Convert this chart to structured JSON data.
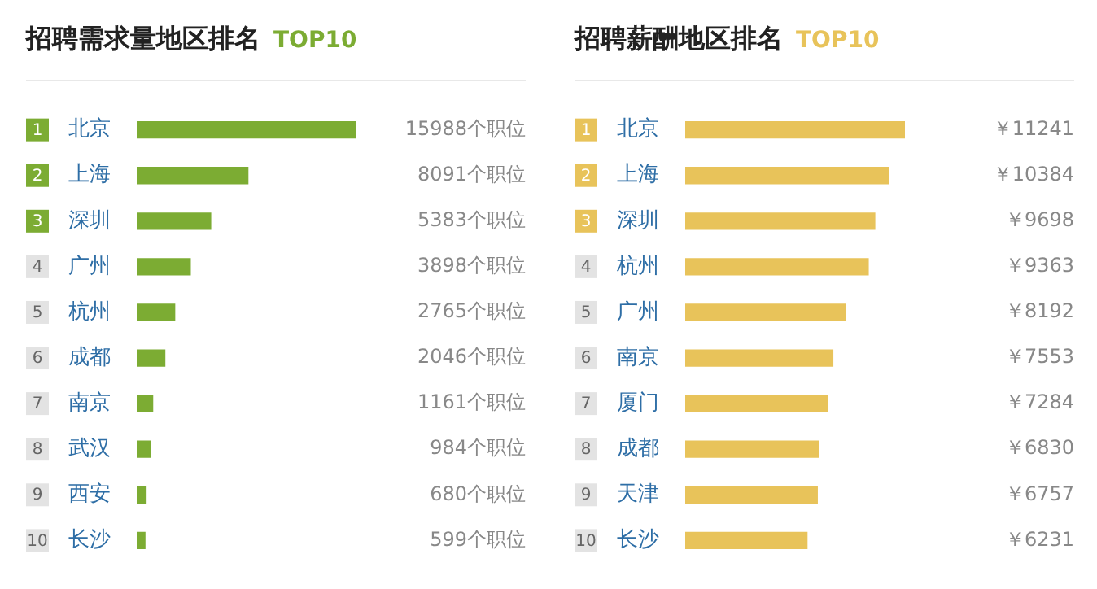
{
  "chart_data": [
    {
      "type": "bar",
      "orientation": "horizontal",
      "title": "招聘需求量地区排名",
      "subtitle": "TOP10",
      "categories": [
        "北京",
        "上海",
        "深圳",
        "广州",
        "杭州",
        "成都",
        "南京",
        "武汉",
        "西安",
        "长沙"
      ],
      "values": [
        15988,
        8091,
        5383,
        3898,
        2765,
        2046,
        1161,
        984,
        680,
        599
      ],
      "color": "#7cac33",
      "value_labels": [
        "15988个职位",
        "8091个职位",
        "5383个职位",
        "3898个职位",
        "2765个职位",
        "2046个职位",
        "1161个职位",
        "984个职位",
        "680个职位",
        "599个职位"
      ],
      "annotations": [
        "1",
        "2",
        "3",
        "4",
        "5",
        "6",
        "7",
        "8",
        "9",
        "10"
      ],
      "legend": false,
      "tick_labels": "y"
    },
    {
      "type": "bar",
      "orientation": "horizontal",
      "title": "招聘薪酬地区排名",
      "subtitle": "TOP10",
      "categories": [
        "北京",
        "上海",
        "深圳",
        "杭州",
        "广州",
        "南京",
        "厦门",
        "成都",
        "天津",
        "长沙"
      ],
      "values": [
        11241,
        10384,
        9698,
        9363,
        8192,
        7553,
        7284,
        6830,
        6757,
        6231
      ],
      "color": "#e8c35a",
      "value_labels": [
        "￥11241",
        "￥10384",
        "￥9698",
        "￥9363",
        "￥8192",
        "￥7553",
        "￥7284",
        "￥6830",
        "￥6757",
        "￥6231"
      ],
      "annotations": [
        "1",
        "2",
        "3",
        "4",
        "5",
        "6",
        "7",
        "8",
        "9",
        "10"
      ],
      "legend": false,
      "tick_labels": "y"
    }
  ]
}
